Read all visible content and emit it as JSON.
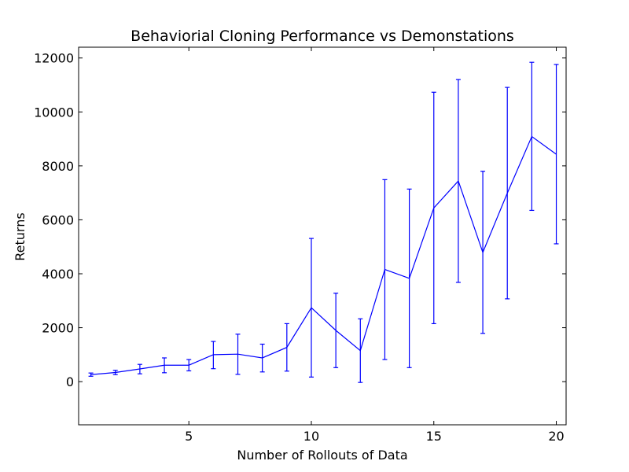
{
  "chart_data": {
    "type": "line",
    "title": "Behaviorial Cloning Performance vs Demonstations",
    "xlabel": "Number of Rollouts of Data",
    "ylabel": "Returns",
    "xlim": [
      0.5,
      20.4
    ],
    "ylim": [
      -1600,
      12400
    ],
    "xticks": [
      5,
      10,
      15,
      20
    ],
    "yticks": [
      0,
      2000,
      4000,
      6000,
      8000,
      10000,
      12000
    ],
    "grid": false,
    "series": [
      {
        "color": "#0000ff",
        "x": [
          1,
          2,
          3,
          4,
          5,
          6,
          7,
          8,
          9,
          10,
          11,
          12,
          13,
          14,
          15,
          16,
          17,
          18,
          19,
          20
        ],
        "y": [
          260,
          340,
          470,
          610,
          610,
          1000,
          1020,
          880,
          1270,
          2740,
          1900,
          1150,
          4160,
          3830,
          6440,
          7440,
          4790,
          6990,
          9090,
          8430
        ],
        "err_low": [
          200,
          260,
          290,
          330,
          400,
          480,
          270,
          360,
          390,
          170,
          520,
          -30,
          820,
          520,
          2150,
          3680,
          1790,
          3070,
          6350,
          5110
        ],
        "err_high": [
          320,
          420,
          640,
          880,
          820,
          1490,
          1760,
          1390,
          2150,
          5310,
          3280,
          2330,
          7490,
          7140,
          10730,
          11200,
          7800,
          10910,
          11840,
          11760
        ]
      }
    ]
  }
}
